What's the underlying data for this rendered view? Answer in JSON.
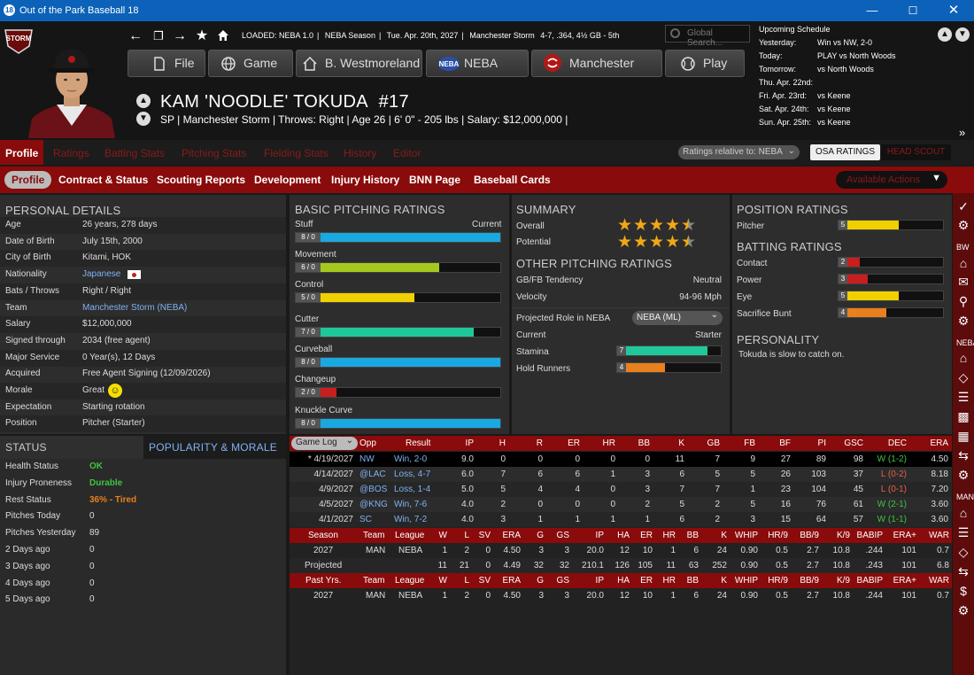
{
  "window": {
    "title": "Out of the Park Baseball 18",
    "app_icon": "18"
  },
  "status": {
    "loaded": "LOADED: NEBA 1.0",
    "season": "NEBA Season",
    "date": "Tue. Apr. 20th, 2027",
    "team": "Manchester Storm",
    "record": "4-7, .364, 4½ GB - 5th",
    "search_placeholder": "Global Search..."
  },
  "nav": {
    "file": "File",
    "game": "Game",
    "manager": "B. Westmoreland",
    "league": "NEBA",
    "team": "Manchester",
    "play": "Play"
  },
  "team_logo_text": "STORM",
  "player": {
    "name": "KAM 'NOODLE' TOKUDA",
    "number": "#17",
    "info": "SP | Manchester Storm  |  Throws: Right  |  Age 26  |  6' 0\" - 205 lbs  |  Salary: $12,000,000  |"
  },
  "schedule": {
    "title": "Upcoming Schedule",
    "rows": [
      {
        "day": "Yesterday:",
        "game": "Win vs NW, 2-0"
      },
      {
        "day": "Today:",
        "game": "PLAY vs North Woods"
      },
      {
        "day": "Tomorrow:",
        "game": "vs North Woods"
      },
      {
        "day": "Thu. Apr. 22nd:",
        "game": ""
      },
      {
        "day": "Fri. Apr. 23rd:",
        "game": "vs Keene"
      },
      {
        "day": "Sat. Apr. 24th:",
        "game": "vs Keene"
      },
      {
        "day": "Sun. Apr. 25th:",
        "game": "vs Keene"
      }
    ]
  },
  "tabs_main": [
    "Profile",
    "Ratings",
    "Batting Stats",
    "Pitching Stats",
    "Fielding Stats",
    "History",
    "Editor"
  ],
  "ratings_relative": "Ratings relative to: NEBA",
  "osa_label": "OSA RATINGS",
  "head_scout_label": "HEAD SCOUT",
  "tabs_sub": [
    "Profile",
    "Contract & Status",
    "Scouting Reports",
    "Development",
    "Injury History",
    "BNN Page",
    "Baseball Cards"
  ],
  "available_actions": "Available Actions",
  "personal": {
    "title": "PERSONAL DETAILS",
    "rows": [
      {
        "label": "Age",
        "value": "26 years, 278 days"
      },
      {
        "label": "Date of Birth",
        "value": "July 15th, 2000"
      },
      {
        "label": "City of Birth",
        "value": "Kitami, HOK"
      },
      {
        "label": "Nationality",
        "value": "Japanese"
      },
      {
        "label": "Bats / Throws",
        "value": "Right / Right"
      },
      {
        "label": "Team",
        "value": "Manchester Storm (NEBA)"
      },
      {
        "label": "Salary",
        "value": "$12,000,000"
      },
      {
        "label": "Signed through",
        "value": "2034 (free agent)"
      },
      {
        "label": "Major Service",
        "value": "0 Year(s), 12 Days"
      },
      {
        "label": "Acquired",
        "value": "Free Agent Signing (12/09/2026)"
      },
      {
        "label": "Morale",
        "value": "Great"
      },
      {
        "label": "Expectation",
        "value": "Starting rotation"
      },
      {
        "label": "Position",
        "value": "Pitcher (Starter)"
      }
    ]
  },
  "status_panel": {
    "tab1": "STATUS",
    "tab2": "POPULARITY & MORALE",
    "rows": [
      {
        "label": "Health Status",
        "value": "OK",
        "color": "#3ec43e"
      },
      {
        "label": "Injury Proneness",
        "value": "Durable",
        "color": "#3ec43e"
      },
      {
        "label": "Rest Status",
        "value": "36% - Tired",
        "color": "#e8801e"
      },
      {
        "label": "Pitches Today",
        "value": "0"
      },
      {
        "label": "Pitches Yesterday",
        "value": "89"
      },
      {
        "label": "2 Days ago",
        "value": "0"
      },
      {
        "label": "3 Days ago",
        "value": "0"
      },
      {
        "label": "4 Days ago",
        "value": "0"
      },
      {
        "label": "5 Days ago",
        "value": "0"
      }
    ]
  },
  "pitching": {
    "title": "BASIC PITCHING RATINGS",
    "current_label": "Current",
    "rows": [
      {
        "label": "Stuff",
        "value": "8 / 0",
        "level": 1.0,
        "color": "#1aa8e0"
      },
      {
        "label": "Movement",
        "value": "6 / 0",
        "level": 0.7,
        "color": "#a6c81e"
      },
      {
        "label": "Control",
        "value": "5 / 0",
        "level": 0.58,
        "color": "#f0d000"
      },
      {
        "label": "Cutter",
        "value": "7 / 0",
        "level": 0.87,
        "color": "#1fc89a"
      },
      {
        "label": "Curveball",
        "value": "8 / 0",
        "level": 1.0,
        "color": "#1aa8e0"
      },
      {
        "label": "Changeup",
        "value": "2 / 0",
        "level": 0.2,
        "color": "#c81e1e"
      },
      {
        "label": "Knuckle Curve",
        "value": "8 / 0",
        "level": 1.0,
        "color": "#1aa8e0"
      }
    ]
  },
  "summary": {
    "title": "SUMMARY",
    "overall_label": "Overall",
    "overall_stars": 4.5,
    "potential_label": "Potential",
    "potential_stars": 4.5,
    "other_title": "OTHER PITCHING RATINGS",
    "gbfb_label": "GB/FB Tendency",
    "gbfb_value": "Neutral",
    "velocity_label": "Velocity",
    "velocity_value": "94-96 Mph",
    "role_label": "Projected Role in NEBA",
    "role_select": "NEBA (ML)",
    "current_label": "Current",
    "current_value": "Starter",
    "stamina_label": "Stamina",
    "stamina_value": "7",
    "stamina_level": 0.87,
    "hold_label": "Hold Runners",
    "hold_value": "4",
    "hold_level": 0.46
  },
  "position": {
    "title": "POSITION RATINGS",
    "pitcher_label": "Pitcher",
    "pitcher_value": "5",
    "pitcher_level": 0.58,
    "batting_title": "BATTING RATINGS",
    "batting": [
      {
        "label": "Contact",
        "value": "2",
        "level": 0.2,
        "color": "#c81e1e"
      },
      {
        "label": "Power",
        "value": "3",
        "level": 0.28,
        "color": "#c81e1e"
      },
      {
        "label": "Eye",
        "value": "5",
        "level": 0.58,
        "color": "#f0d000"
      },
      {
        "label": "Sacrifice Bunt",
        "value": "4",
        "level": 0.46,
        "color": "#e8801e"
      }
    ],
    "personality_title": "PERSONALITY",
    "personality_text": "Tokuda is slow to catch on."
  },
  "gamelog": {
    "select": "Game Log",
    "headers": [
      "Opp",
      "Result",
      "IP",
      "H",
      "R",
      "ER",
      "HR",
      "BB",
      "K",
      "GB",
      "FB",
      "BF",
      "PI",
      "GSC",
      "DEC",
      "ERA"
    ],
    "rows": [
      {
        "date": "* 4/19/2027",
        "opp": "NW",
        "result": "Win, 2-0",
        "ip": "9.0",
        "h": "0",
        "r": "0",
        "er": "0",
        "hr": "0",
        "bb": "0",
        "k": "11",
        "gb": "7",
        "fb": "9",
        "bf": "27",
        "pi": "89",
        "gsc": "98",
        "dec": "W (1-2)",
        "era": "4.50"
      },
      {
        "date": "4/14/2027",
        "opp": "@LAC",
        "result": "Loss, 4-7",
        "ip": "6.0",
        "h": "7",
        "r": "6",
        "er": "6",
        "hr": "1",
        "bb": "3",
        "k": "6",
        "gb": "5",
        "fb": "5",
        "bf": "26",
        "pi": "103",
        "gsc": "37",
        "dec": "L (0-2)",
        "era": "8.18"
      },
      {
        "date": "4/9/2027",
        "opp": "@BOS",
        "result": "Loss, 1-4",
        "ip": "5.0",
        "h": "5",
        "r": "4",
        "er": "4",
        "hr": "0",
        "bb": "3",
        "k": "7",
        "gb": "7",
        "fb": "1",
        "bf": "23",
        "pi": "104",
        "gsc": "45",
        "dec": "L (0-1)",
        "era": "7.20"
      },
      {
        "date": "4/5/2027",
        "opp": "@KNG",
        "result": "Win, 7-6",
        "ip": "4.0",
        "h": "2",
        "r": "0",
        "er": "0",
        "hr": "0",
        "bb": "2",
        "k": "5",
        "gb": "2",
        "fb": "5",
        "bf": "16",
        "pi": "76",
        "gsc": "61",
        "dec": "W (2-1)",
        "era": "3.60"
      },
      {
        "date": "4/1/2027",
        "opp": "SC",
        "result": "Win, 7-2",
        "ip": "4.0",
        "h": "3",
        "r": "1",
        "er": "1",
        "hr": "1",
        "bb": "1",
        "k": "6",
        "gb": "2",
        "fb": "3",
        "bf": "15",
        "pi": "64",
        "gsc": "57",
        "dec": "W (1-1)",
        "era": "3.60"
      }
    ]
  },
  "season_table": {
    "headers": [
      "Season",
      "Team",
      "League",
      "W",
      "L",
      "SV",
      "ERA",
      "G",
      "GS",
      "IP",
      "HA",
      "ER",
      "HR",
      "BB",
      "K",
      "WHIP",
      "HR/9",
      "BB/9",
      "K/9",
      "BABIP",
      "ERA+",
      "WAR"
    ],
    "rows": [
      [
        "2027",
        "MAN",
        "NEBA",
        "1",
        "2",
        "0",
        "4.50",
        "3",
        "3",
        "20.0",
        "12",
        "10",
        "1",
        "6",
        "24",
        "0.90",
        "0.5",
        "2.7",
        "10.8",
        ".244",
        "101",
        "0.7"
      ],
      [
        "Projected",
        "",
        "",
        "11",
        "21",
        "0",
        "4.49",
        "32",
        "32",
        "210.1",
        "126",
        "105",
        "11",
        "63",
        "252",
        "0.90",
        "0.5",
        "2.7",
        "10.8",
        ".243",
        "101",
        "6.8"
      ]
    ]
  },
  "past_table": {
    "headers": [
      "Past Yrs.",
      "Team",
      "League",
      "W",
      "L",
      "SV",
      "ERA",
      "G",
      "GS",
      "IP",
      "HA",
      "ER",
      "HR",
      "BB",
      "K",
      "WHIP",
      "HR/9",
      "BB/9",
      "K/9",
      "BABIP",
      "ERA+",
      "WAR"
    ],
    "rows": [
      [
        "2027",
        "MAN",
        "NEBA",
        "1",
        "2",
        "0",
        "4.50",
        "3",
        "3",
        "20.0",
        "12",
        "10",
        "1",
        "6",
        "24",
        "0.90",
        "0.5",
        "2.7",
        "10.8",
        ".244",
        "101",
        "0.7"
      ]
    ]
  },
  "sidebar": {
    "bw": "BW",
    "neba": "NEBA",
    "man": "MAN"
  }
}
